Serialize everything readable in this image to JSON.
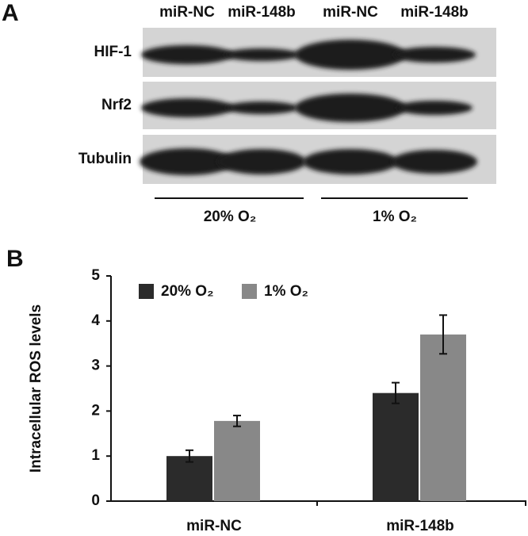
{
  "blot": {
    "panel": "A",
    "columns": [
      "miR-NC",
      "miR-148b",
      "miR-NC",
      "miR-148b"
    ],
    "rows": [
      "HIF-1",
      "Nrf2",
      "Tubulin"
    ],
    "groups": [
      "20% O₂",
      "1% O₂"
    ]
  },
  "chart_data": {
    "type": "bar",
    "panel": "B",
    "y_label": "Intracellular ROS levels",
    "categories": [
      "miR-NC",
      "miR-148b"
    ],
    "series": [
      {
        "name": "20% O₂",
        "color": "#2b2b2b",
        "values": [
          1.0,
          2.4
        ],
        "errors": [
          0.13,
          0.23
        ]
      },
      {
        "name": "1% O₂",
        "color": "#888888",
        "values": [
          1.78,
          3.7
        ],
        "errors": [
          0.12,
          0.43
        ]
      }
    ],
    "ylim": [
      0,
      5
    ],
    "yticks": [
      0,
      1,
      2,
      3,
      4,
      5
    ],
    "grid": false,
    "legend": "upper-left"
  }
}
